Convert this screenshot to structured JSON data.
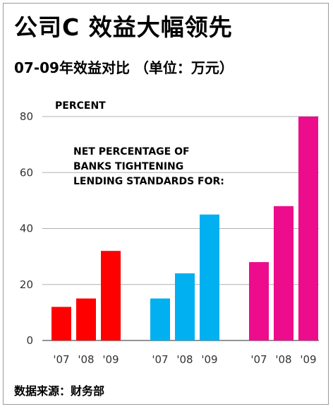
{
  "title": "公司C 效益大幅领先",
  "subtitle": "07-09年效益对比 （单位：万元）",
  "source": "数据来源：财务部",
  "chart_data": {
    "type": "bar",
    "ylabel": "PERCENT",
    "annotation": [
      "NET PERCENTAGE OF",
      "BANKS TIGHTENING",
      "LENDING STANDARDS FOR:"
    ],
    "ylim": [
      0,
      80
    ],
    "yticks": [
      0,
      20,
      40,
      60,
      80
    ],
    "grid": true,
    "groups": [
      {
        "categories": [
          "'07",
          "'08",
          "'09"
        ],
        "values": [
          12,
          15,
          32
        ],
        "color": "#ff0000"
      },
      {
        "categories": [
          "'07",
          "'08",
          "'09"
        ],
        "values": [
          15,
          24,
          45
        ],
        "color": "#00b0f0"
      },
      {
        "categories": [
          "'07",
          "'08",
          "'09"
        ],
        "values": [
          28,
          48,
          80
        ],
        "color": "#ec0c8c"
      }
    ]
  }
}
